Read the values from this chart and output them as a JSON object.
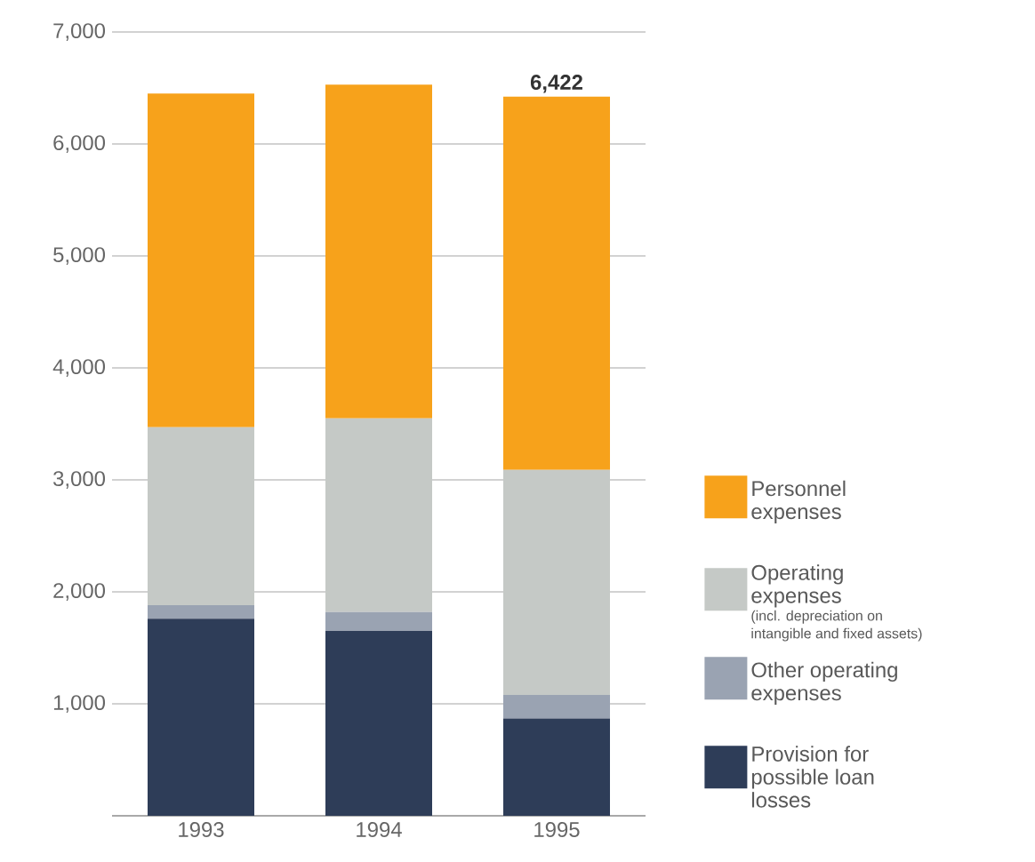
{
  "chart_data": {
    "type": "bar",
    "stacked": true,
    "categories": [
      "1993",
      "1994",
      "1995"
    ],
    "series": [
      {
        "name": "Provision for possible loan losses",
        "color": "#2e3d58",
        "values": [
          1760,
          1650,
          870
        ]
      },
      {
        "name": "Other operating expenses",
        "color": "#9aa3b2",
        "values": [
          120,
          170,
          210
        ]
      },
      {
        "name": "Operating expenses",
        "color": "#c5c9c6",
        "values": [
          1590,
          1730,
          2010
        ]
      },
      {
        "name": "Personnel expenses",
        "color": "#f7a21b",
        "values": [
          2980,
          2980,
          3332
        ]
      }
    ],
    "totals": [
      null,
      null,
      "6,422"
    ],
    "annotations": [
      "(incl. depreciation on intangible and fixed assets)"
    ],
    "ylim": [
      0,
      7000
    ],
    "yticks": [
      {
        "value": 1000,
        "label": "1,000"
      },
      {
        "value": 2000,
        "label": "2,000"
      },
      {
        "value": 3000,
        "label": "3,000"
      },
      {
        "value": 4000,
        "label": "4,000"
      },
      {
        "value": 5000,
        "label": "5,000"
      },
      {
        "value": 6000,
        "label": "6,000"
      },
      {
        "value": 7000,
        "label": "7,000"
      }
    ],
    "grid": "y",
    "legend": "right"
  }
}
